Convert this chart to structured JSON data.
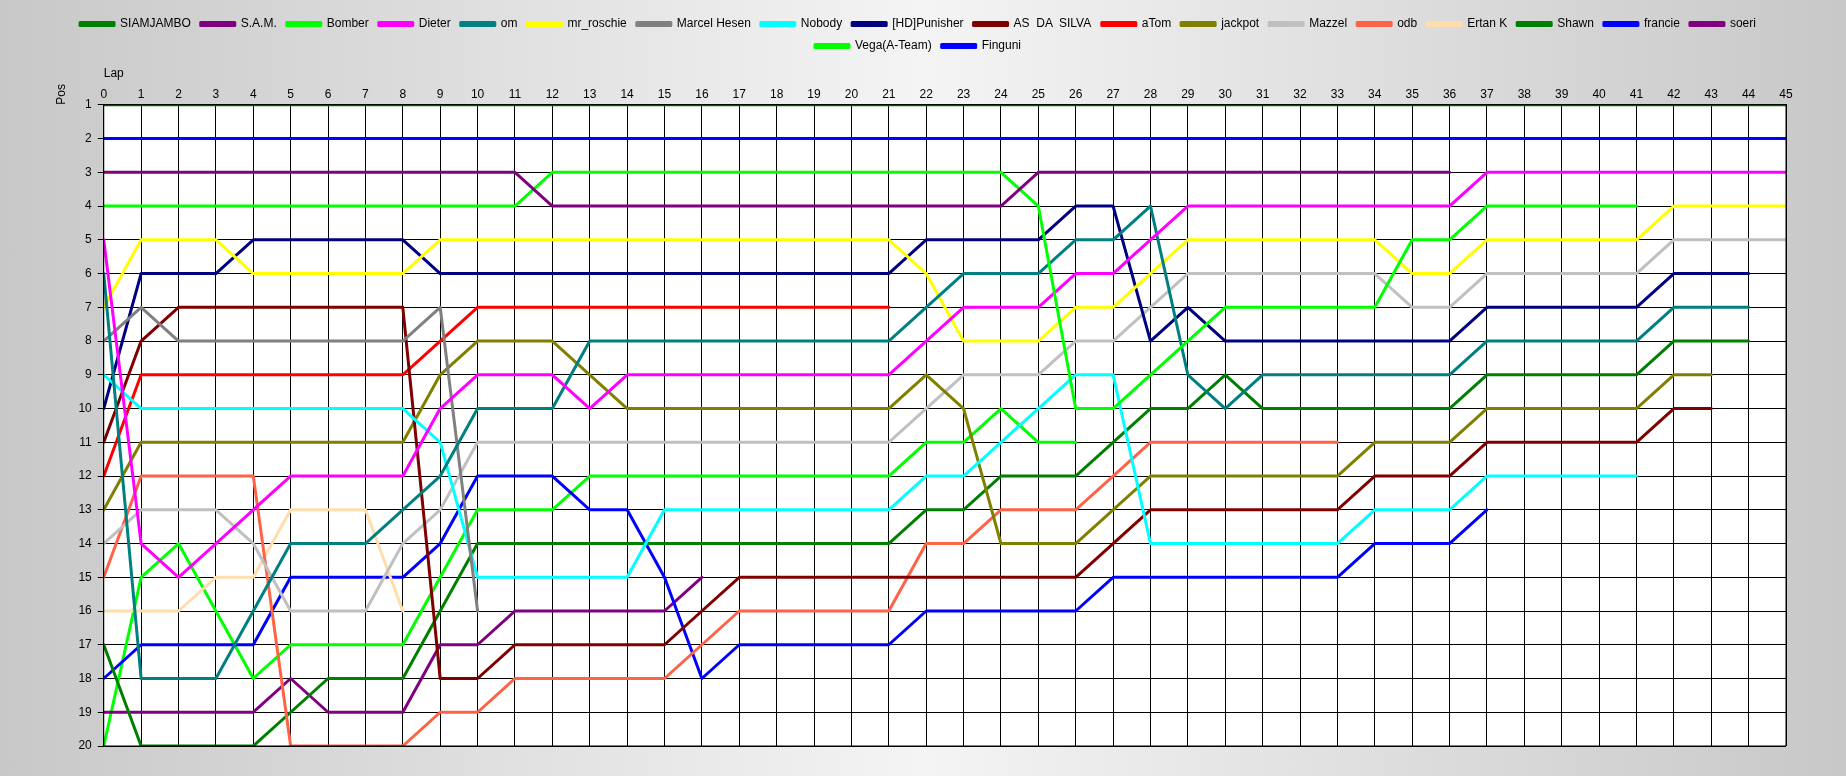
{
  "chart_data": {
    "type": "line",
    "xlabel": "Lap",
    "ylabel": "Pos",
    "x": [
      0,
      1,
      2,
      3,
      4,
      5,
      6,
      7,
      8,
      9,
      10,
      11,
      12,
      13,
      14,
      15,
      16,
      17,
      18,
      19,
      20,
      21,
      22,
      23,
      24,
      25,
      26,
      27,
      28,
      29,
      30,
      31,
      32,
      33,
      34,
      35,
      36,
      37,
      38,
      39,
      40,
      41,
      42,
      43,
      44,
      45
    ],
    "xlim": [
      0,
      45
    ],
    "xticks": [
      0,
      1,
      2,
      3,
      4,
      5,
      6,
      7,
      8,
      9,
      10,
      11,
      12,
      13,
      14,
      15,
      16,
      17,
      18,
      19,
      20,
      21,
      22,
      23,
      24,
      25,
      26,
      27,
      28,
      29,
      30,
      31,
      32,
      33,
      34,
      35,
      36,
      37,
      38,
      39,
      40,
      41,
      42,
      43,
      44,
      45
    ],
    "ylim": [
      20,
      1
    ],
    "yticks": [
      1,
      2,
      3,
      4,
      5,
      6,
      7,
      8,
      9,
      10,
      11,
      12,
      13,
      14,
      15,
      16,
      17,
      18,
      19,
      20
    ],
    "grid": true,
    "legend": "top",
    "marker": "none",
    "line_style": "solid",
    "series": [
      {
        "name": "SIAMJAMBO",
        "color": "#008000",
        "values": [
          1,
          1,
          1,
          1,
          1,
          1,
          1,
          1,
          1,
          1,
          1,
          1,
          1,
          1,
          1,
          1,
          1,
          1,
          1,
          1,
          1,
          1,
          1,
          1,
          1,
          1,
          1,
          1,
          1,
          1,
          1,
          1,
          1,
          1,
          1,
          1,
          1,
          1,
          1,
          1,
          1,
          1,
          1,
          1,
          1,
          1
        ]
      },
      {
        "name": "S.A.M.",
        "color": "#800080",
        "values": [
          3,
          3,
          3,
          3,
          3,
          3,
          3,
          3,
          3,
          3,
          3,
          3,
          4,
          4,
          4,
          4,
          4,
          4,
          4,
          4,
          4,
          4,
          4,
          4,
          4,
          3,
          3,
          3,
          3,
          3,
          3,
          3,
          3,
          3,
          3,
          3,
          3,
          null,
          null,
          null,
          null,
          null,
          null,
          null,
          null,
          null
        ]
      },
      {
        "name": "Bomber",
        "color": "#00ff00",
        "values": [
          4,
          4,
          4,
          4,
          4,
          4,
          4,
          4,
          4,
          4,
          4,
          4,
          3,
          3,
          3,
          3,
          3,
          3,
          3,
          3,
          3,
          3,
          3,
          3,
          3,
          4,
          10,
          10,
          9,
          8,
          7,
          7,
          7,
          7,
          7,
          5,
          5,
          4,
          4,
          4,
          4,
          4,
          null,
          null,
          null,
          null
        ]
      },
      {
        "name": "Dieter",
        "color": "#ff00ff",
        "values": [
          5,
          14,
          15,
          14,
          13,
          12,
          12,
          12,
          12,
          10,
          9,
          9,
          9,
          10,
          9,
          9,
          9,
          9,
          9,
          9,
          9,
          9,
          8,
          7,
          7,
          7,
          6,
          6,
          5,
          4,
          4,
          4,
          4,
          4,
          4,
          4,
          4,
          3,
          3,
          3,
          3,
          3,
          3,
          3,
          3,
          3
        ]
      },
      {
        "name": "om",
        "color": "#008080",
        "values": [
          6,
          18,
          18,
          18,
          16,
          14,
          14,
          14,
          13,
          12,
          10,
          10,
          10,
          8,
          8,
          8,
          8,
          8,
          8,
          8,
          8,
          8,
          7,
          6,
          6,
          6,
          5,
          5,
          4,
          9,
          10,
          9,
          9,
          9,
          9,
          9,
          9,
          8,
          8,
          8,
          8,
          8,
          7,
          7,
          7,
          null
        ]
      },
      {
        "name": "mr_roschie",
        "color": "#ffff00",
        "values": [
          7,
          5,
          5,
          5,
          6,
          6,
          6,
          6,
          6,
          5,
          5,
          5,
          5,
          5,
          5,
          5,
          5,
          5,
          5,
          5,
          5,
          5,
          6,
          8,
          8,
          8,
          7,
          7,
          6,
          5,
          5,
          5,
          5,
          5,
          5,
          6,
          6,
          5,
          5,
          5,
          5,
          5,
          4,
          4,
          4,
          4
        ]
      },
      {
        "name": "Marcel Hesen",
        "color": "#808080",
        "values": [
          8,
          7,
          8,
          8,
          8,
          8,
          8,
          8,
          8,
          7,
          16,
          null,
          null,
          null,
          null,
          null,
          null,
          null,
          null,
          null,
          null,
          null,
          null,
          null,
          null,
          null,
          null,
          null,
          null,
          null,
          null,
          null,
          null,
          null,
          null,
          null,
          null,
          null,
          null,
          null,
          null,
          null,
          null,
          null,
          null,
          null
        ]
      },
      {
        "name": "Nobody",
        "color": "#00ffff",
        "values": [
          9,
          10,
          10,
          10,
          10,
          10,
          10,
          10,
          10,
          11,
          15,
          15,
          15,
          15,
          15,
          13,
          13,
          13,
          13,
          13,
          13,
          13,
          12,
          12,
          11,
          10,
          9,
          9,
          14,
          14,
          14,
          14,
          14,
          14,
          13,
          13,
          13,
          12,
          12,
          12,
          12,
          12,
          null,
          null,
          null,
          null
        ]
      },
      {
        "name": "[HD]Punisher",
        "color": "#000080",
        "values": [
          10,
          6,
          6,
          6,
          5,
          5,
          5,
          5,
          5,
          6,
          6,
          6,
          6,
          6,
          6,
          6,
          6,
          6,
          6,
          6,
          6,
          6,
          5,
          5,
          5,
          5,
          4,
          4,
          8,
          7,
          8,
          8,
          8,
          8,
          8,
          8,
          8,
          7,
          7,
          7,
          7,
          7,
          6,
          6,
          6,
          null
        ]
      },
      {
        "name": "AS  DA  SILVA",
        "color": "#800000",
        "values": [
          11,
          8,
          7,
          7,
          7,
          7,
          7,
          7,
          7,
          18,
          18,
          17,
          17,
          17,
          17,
          17,
          16,
          15,
          15,
          15,
          15,
          15,
          15,
          15,
          15,
          15,
          15,
          14,
          13,
          13,
          13,
          13,
          13,
          13,
          12,
          12,
          12,
          11,
          11,
          11,
          11,
          11,
          10,
          10,
          null,
          null
        ]
      },
      {
        "name": "aTom",
        "color": "#ff0000",
        "values": [
          12,
          9,
          9,
          9,
          9,
          9,
          9,
          9,
          9,
          8,
          7,
          7,
          7,
          7,
          7,
          7,
          7,
          7,
          7,
          7,
          7,
          7,
          null,
          null,
          null,
          null,
          null,
          null,
          null,
          null,
          null,
          null,
          null,
          null,
          null,
          null,
          null,
          null,
          null,
          null,
          null,
          null,
          null,
          null,
          null,
          null
        ]
      },
      {
        "name": "jackpot",
        "color": "#808000",
        "values": [
          13,
          11,
          11,
          11,
          11,
          11,
          11,
          11,
          11,
          9,
          8,
          8,
          8,
          9,
          10,
          10,
          10,
          10,
          10,
          10,
          10,
          10,
          9,
          10,
          14,
          14,
          14,
          13,
          12,
          12,
          12,
          12,
          12,
          12,
          11,
          11,
          11,
          10,
          10,
          10,
          10,
          10,
          9,
          9,
          null,
          null
        ]
      },
      {
        "name": "Mazzel",
        "color": "#c0c0c0",
        "values": [
          14,
          13,
          13,
          13,
          14,
          16,
          16,
          16,
          14,
          13,
          11,
          11,
          11,
          11,
          11,
          11,
          11,
          11,
          11,
          11,
          11,
          11,
          10,
          9,
          9,
          9,
          8,
          8,
          7,
          6,
          6,
          6,
          6,
          6,
          6,
          7,
          7,
          6,
          6,
          6,
          6,
          6,
          5,
          5,
          5,
          5
        ]
      },
      {
        "name": "odb",
        "color": "#ff6347",
        "values": [
          15,
          12,
          12,
          12,
          12,
          20,
          20,
          20,
          20,
          19,
          19,
          18,
          18,
          18,
          18,
          18,
          17,
          16,
          16,
          16,
          16,
          16,
          14,
          14,
          13,
          13,
          13,
          12,
          11,
          11,
          11,
          11,
          11,
          11,
          null,
          null,
          null,
          null,
          null,
          null,
          null,
          null,
          null,
          null,
          null,
          null
        ]
      },
      {
        "name": "Ertan K",
        "color": "#ffdead",
        "values": [
          16,
          16,
          16,
          15,
          15,
          13,
          13,
          13,
          16,
          null,
          null,
          null,
          null,
          null,
          null,
          null,
          null,
          null,
          null,
          null,
          null,
          null,
          null,
          null,
          null,
          null,
          null,
          null,
          null,
          null,
          null,
          null,
          null,
          null,
          null,
          null,
          null,
          null,
          null,
          null,
          null,
          null,
          null,
          null,
          null,
          null
        ]
      },
      {
        "name": "Shawn",
        "color": "#008000",
        "values": [
          17,
          20,
          20,
          20,
          20,
          19,
          18,
          18,
          18,
          16,
          14,
          14,
          14,
          14,
          14,
          14,
          14,
          14,
          14,
          14,
          14,
          14,
          13,
          13,
          12,
          12,
          12,
          11,
          10,
          10,
          9,
          10,
          10,
          10,
          10,
          10,
          10,
          9,
          9,
          9,
          9,
          9,
          8,
          8,
          8,
          null
        ]
      },
      {
        "name": "francie",
        "color": "#0000ff",
        "values": [
          18,
          17,
          17,
          17,
          17,
          15,
          15,
          15,
          15,
          14,
          12,
          12,
          12,
          13,
          13,
          15,
          18,
          17,
          17,
          17,
          17,
          17,
          16,
          16,
          16,
          16,
          16,
          15,
          15,
          15,
          15,
          15,
          15,
          15,
          14,
          14,
          14,
          13,
          null,
          null,
          null,
          null,
          null,
          null,
          null,
          null
        ]
      },
      {
        "name": "soeri",
        "color": "#800080",
        "values": [
          19,
          19,
          19,
          19,
          19,
          18,
          19,
          19,
          19,
          17,
          17,
          16,
          16,
          16,
          16,
          16,
          15,
          null,
          null,
          null,
          null,
          null,
          null,
          null,
          null,
          null,
          null,
          null,
          null,
          null,
          null,
          null,
          null,
          null,
          null,
          null,
          null,
          null,
          null,
          null,
          null,
          null,
          null,
          null,
          null,
          null
        ]
      },
      {
        "name": "Vega(A-Team)",
        "color": "#00ff00",
        "values": [
          20,
          15,
          14,
          16,
          18,
          17,
          17,
          17,
          17,
          15,
          13,
          13,
          13,
          12,
          12,
          12,
          12,
          12,
          12,
          12,
          12,
          12,
          11,
          11,
          10,
          11,
          11,
          null,
          null,
          null,
          null,
          null,
          null,
          null,
          null,
          null,
          null,
          null,
          null,
          null,
          null,
          null,
          null,
          null,
          null,
          null
        ]
      },
      {
        "name": "Finguni",
        "color": "#0000ff",
        "values": [
          2,
          2,
          2,
          2,
          2,
          2,
          2,
          2,
          2,
          2,
          2,
          2,
          2,
          2,
          2,
          2,
          2,
          2,
          2,
          2,
          2,
          2,
          2,
          2,
          2,
          2,
          2,
          2,
          2,
          2,
          2,
          2,
          2,
          2,
          2,
          2,
          2,
          2,
          2,
          2,
          2,
          2,
          2,
          2,
          2,
          2
        ]
      }
    ]
  }
}
